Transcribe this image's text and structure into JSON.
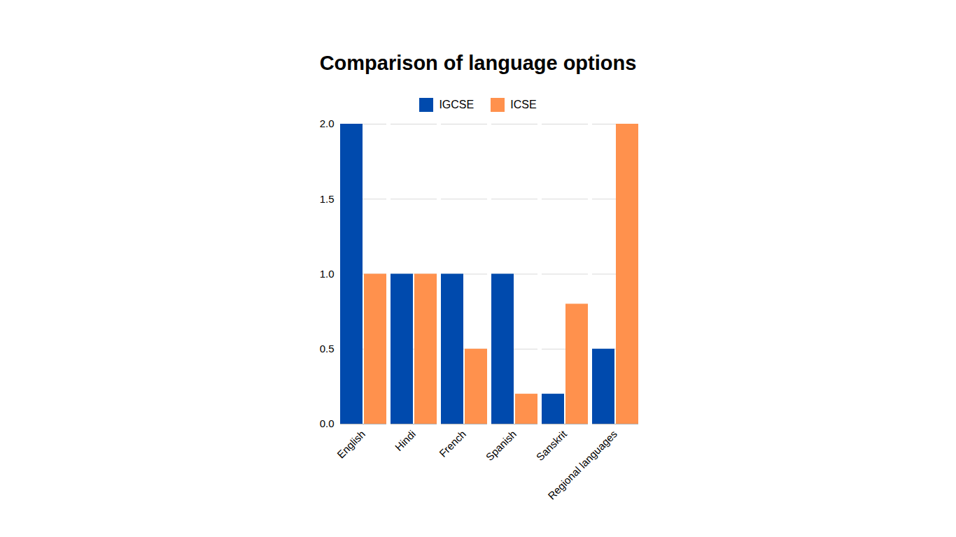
{
  "chart_data": {
    "type": "bar",
    "title": "Comparison of language options",
    "categories": [
      "English",
      "Hindi",
      "French",
      "Spanish",
      "Sanskrit",
      "Regional languages"
    ],
    "series": [
      {
        "name": "IGCSE",
        "color": "#004aad",
        "values": [
          2,
          1,
          1,
          1,
          0.2,
          0.5
        ]
      },
      {
        "name": "ICSE",
        "color": "#ff914d",
        "values": [
          1,
          1,
          0.5,
          0.2,
          0.8,
          2
        ]
      }
    ],
    "ylim": [
      0,
      2
    ],
    "yticks": [
      {
        "value": 0,
        "label": "0.0"
      },
      {
        "value": 0.5,
        "label": "0.5"
      },
      {
        "value": 1,
        "label": "1.0"
      },
      {
        "value": 1.5,
        "label": "1.5"
      },
      {
        "value": 2,
        "label": "2.0"
      }
    ],
    "grid": true,
    "legend": "top"
  }
}
